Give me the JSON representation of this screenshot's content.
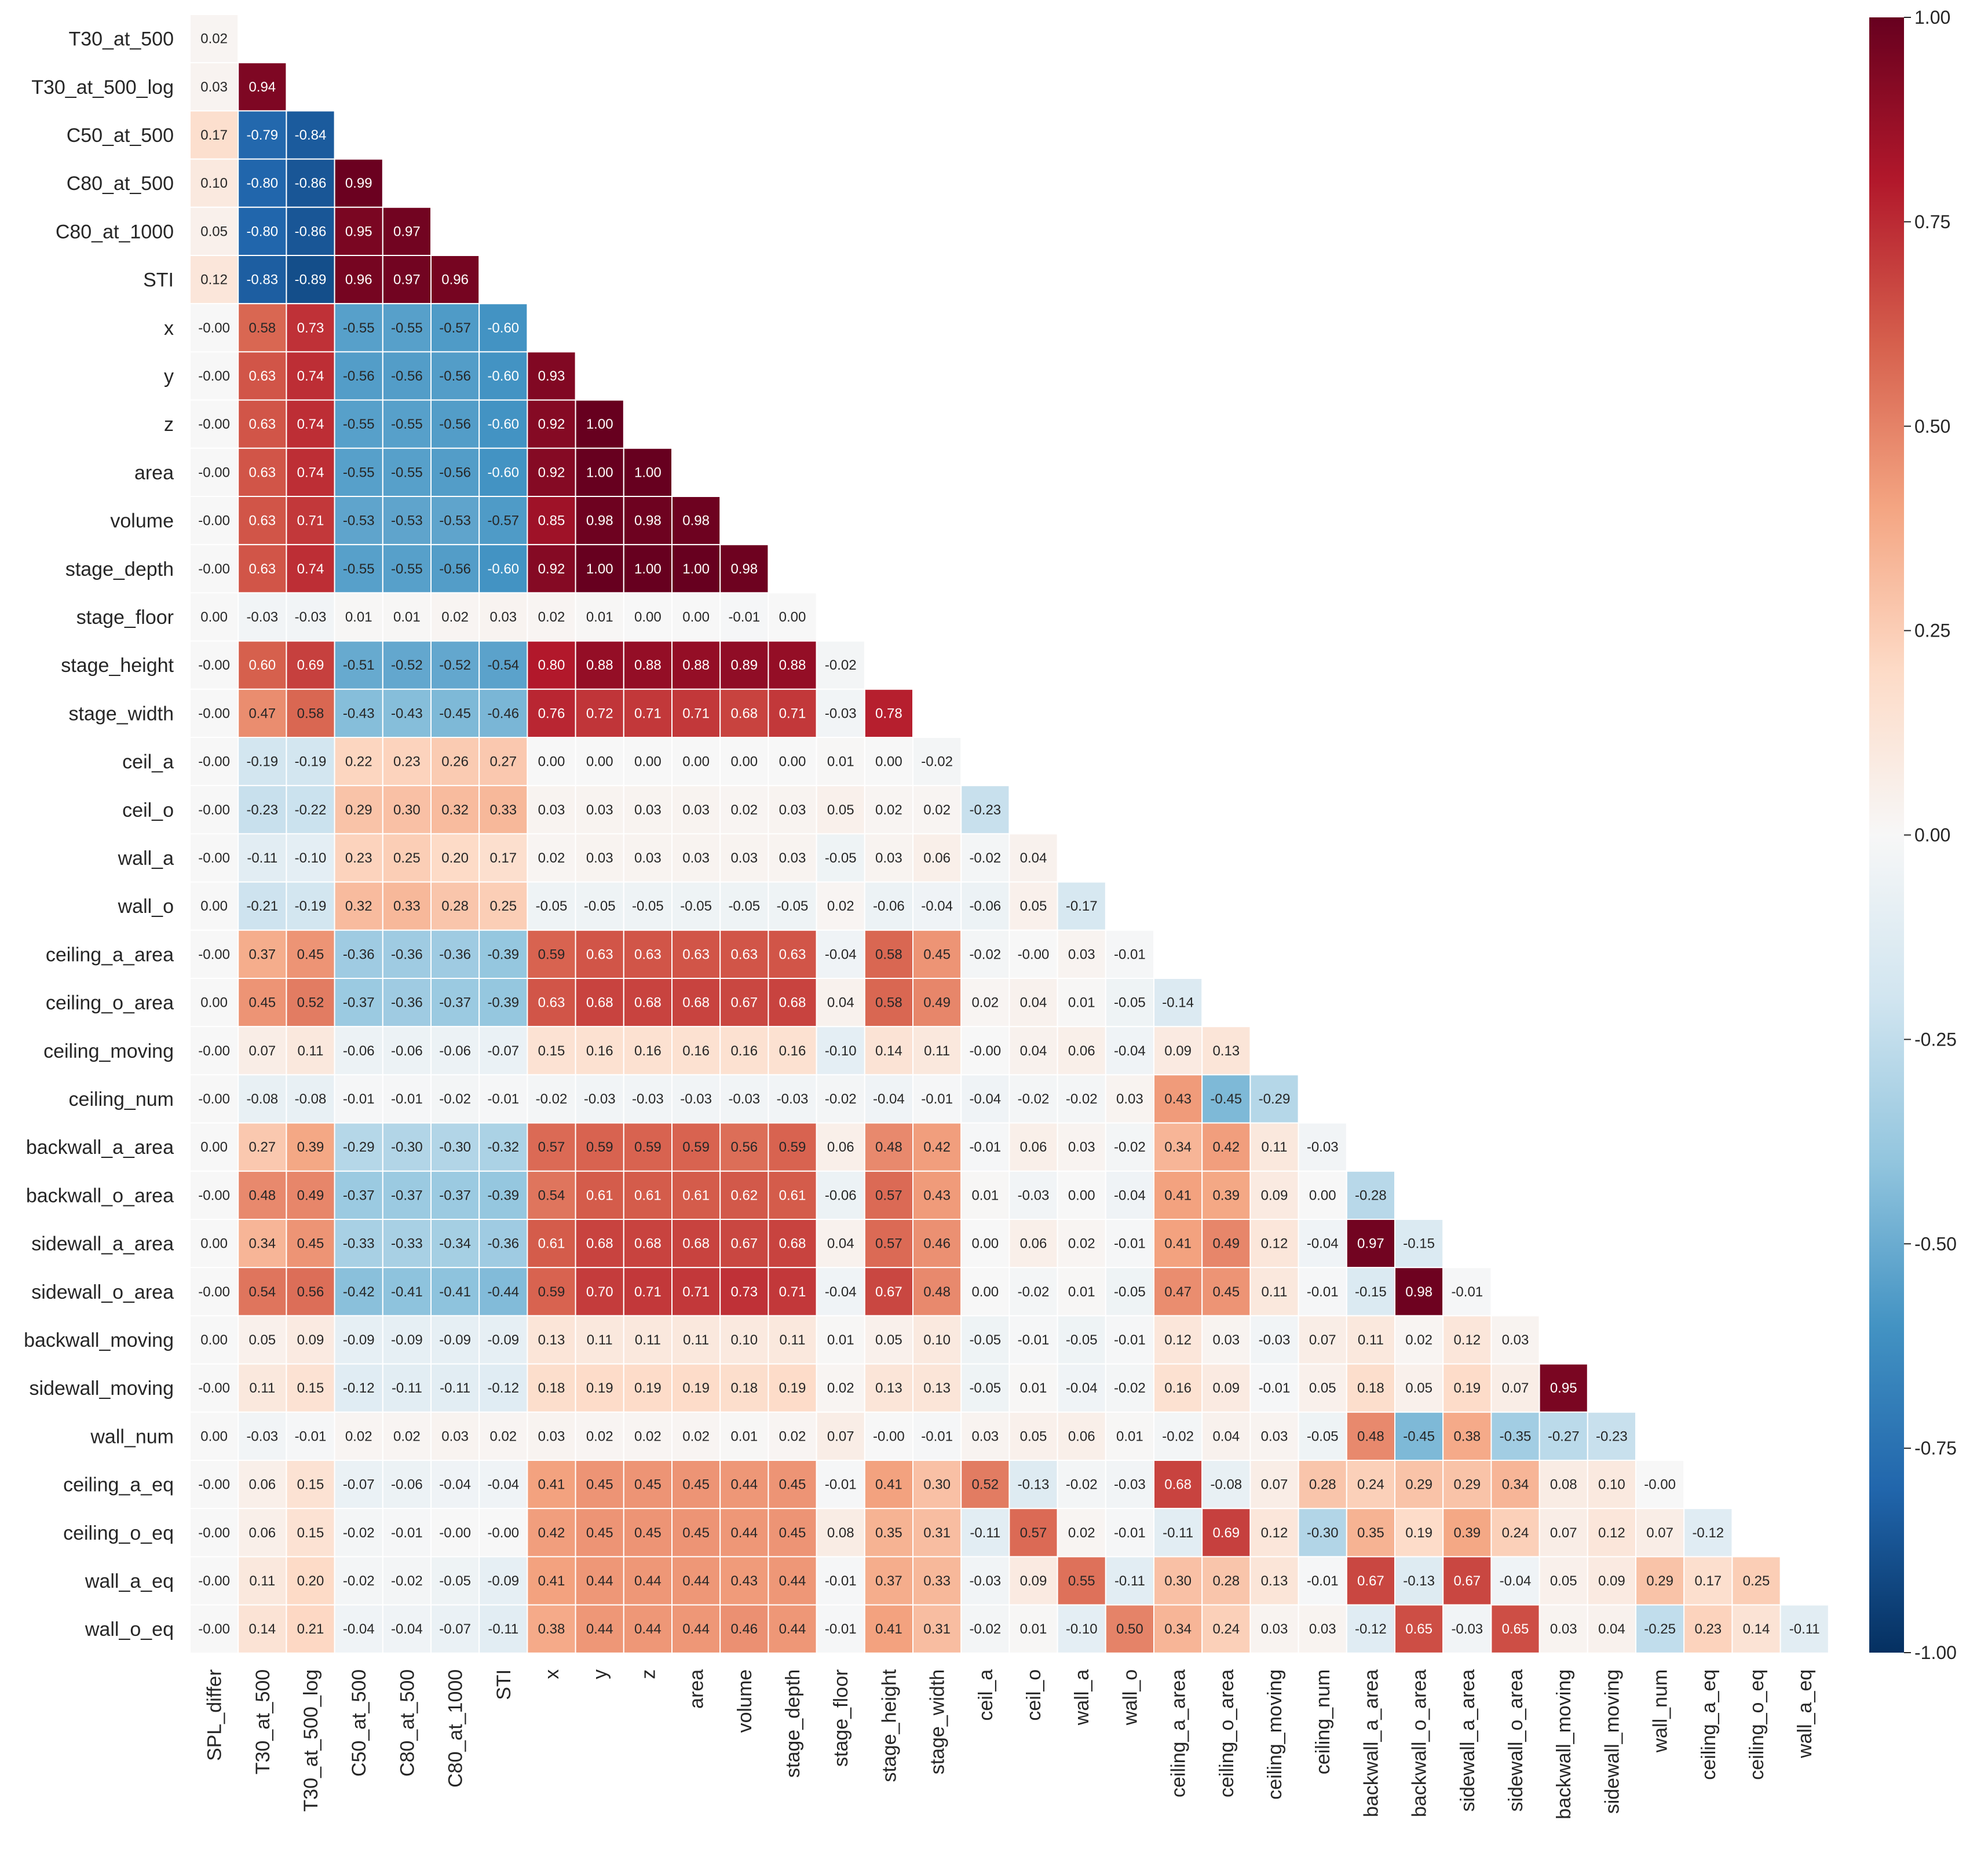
{
  "chart_data": {
    "type": "heatmap",
    "title": "",
    "variables": [
      "SPL_differ",
      "T30_at_500",
      "T30_at_500_log",
      "C50_at_500",
      "C80_at_500",
      "C80_at_1000",
      "STI",
      "x",
      "y",
      "z",
      "area",
      "volume",
      "stage_depth",
      "stage_floor",
      "stage_height",
      "stage_width",
      "ceil_a",
      "ceil_o",
      "wall_a",
      "wall_o",
      "ceiling_a_area",
      "ceiling_o_area",
      "ceiling_moving",
      "ceiling_num",
      "backwall_a_area",
      "backwall_o_area",
      "sidewall_a_area",
      "sidewall_o_area",
      "backwall_moving",
      "sidewall_moving",
      "wall_num",
      "ceiling_a_eq",
      "ceiling_o_eq",
      "wall_a_eq",
      "wall_o_eq"
    ],
    "row_labels": [
      "T30_at_500",
      "T30_at_500_log",
      "C50_at_500",
      "C80_at_500",
      "C80_at_1000",
      "STI",
      "x",
      "y",
      "z",
      "area",
      "volume",
      "stage_depth",
      "stage_floor",
      "stage_height",
      "stage_width",
      "ceil_a",
      "ceil_o",
      "wall_a",
      "wall_o",
      "ceiling_a_area",
      "ceiling_o_area",
      "ceiling_moving",
      "ceiling_num",
      "backwall_a_area",
      "backwall_o_area",
      "sidewall_a_area",
      "sidewall_o_area",
      "backwall_moving",
      "sidewall_moving",
      "wall_num",
      "ceiling_a_eq",
      "ceiling_o_eq",
      "wall_a_eq",
      "wall_o_eq"
    ],
    "col_labels": [
      "SPL_differ",
      "T30_at_500",
      "T30_at_500_log",
      "C50_at_500",
      "C80_at_500",
      "C80_at_1000",
      "STI",
      "x",
      "y",
      "z",
      "area",
      "volume",
      "stage_depth",
      "stage_floor",
      "stage_height",
      "stage_width",
      "ceil_a",
      "ceil_o",
      "wall_a",
      "wall_o",
      "ceiling_a_area",
      "ceiling_o_area",
      "ceiling_moving",
      "ceiling_num",
      "backwall_a_area",
      "backwall_o_area",
      "sidewall_a_area",
      "sidewall_o_area",
      "backwall_moving",
      "sidewall_moving",
      "wall_num",
      "ceiling_a_eq",
      "ceiling_o_eq",
      "wall_a_eq"
    ],
    "lower_triangle": [
      [
        "0.02"
      ],
      [
        "0.03",
        "0.94"
      ],
      [
        "0.17",
        "-0.79",
        "-0.84"
      ],
      [
        "0.10",
        "-0.80",
        "-0.86",
        "0.99"
      ],
      [
        "0.05",
        "-0.80",
        "-0.86",
        "0.95",
        "0.97"
      ],
      [
        "0.12",
        "-0.83",
        "-0.89",
        "0.96",
        "0.97",
        "0.96"
      ],
      [
        "-0.00",
        "0.58",
        "0.73",
        "-0.55",
        "-0.55",
        "-0.57",
        "-0.60"
      ],
      [
        "-0.00",
        "0.63",
        "0.74",
        "-0.56",
        "-0.56",
        "-0.56",
        "-0.60",
        "0.93"
      ],
      [
        "-0.00",
        "0.63",
        "0.74",
        "-0.55",
        "-0.55",
        "-0.56",
        "-0.60",
        "0.92",
        "1.00"
      ],
      [
        "-0.00",
        "0.63",
        "0.74",
        "-0.55",
        "-0.55",
        "-0.56",
        "-0.60",
        "0.92",
        "1.00",
        "1.00"
      ],
      [
        "-0.00",
        "0.63",
        "0.71",
        "-0.53",
        "-0.53",
        "-0.53",
        "-0.57",
        "0.85",
        "0.98",
        "0.98",
        "0.98"
      ],
      [
        "-0.00",
        "0.63",
        "0.74",
        "-0.55",
        "-0.55",
        "-0.56",
        "-0.60",
        "0.92",
        "1.00",
        "1.00",
        "1.00",
        "0.98"
      ],
      [
        "0.00",
        "-0.03",
        "-0.03",
        "0.01",
        "0.01",
        "0.02",
        "0.03",
        "0.02",
        "0.01",
        "0.00",
        "0.00",
        "-0.01",
        "0.00"
      ],
      [
        "-0.00",
        "0.60",
        "0.69",
        "-0.51",
        "-0.52",
        "-0.52",
        "-0.54",
        "0.80",
        "0.88",
        "0.88",
        "0.88",
        "0.89",
        "0.88",
        "-0.02"
      ],
      [
        "-0.00",
        "0.47",
        "0.58",
        "-0.43",
        "-0.43",
        "-0.45",
        "-0.46",
        "0.76",
        "0.72",
        "0.71",
        "0.71",
        "0.68",
        "0.71",
        "-0.03",
        "0.78"
      ],
      [
        "-0.00",
        "-0.19",
        "-0.19",
        "0.22",
        "0.23",
        "0.26",
        "0.27",
        "0.00",
        "0.00",
        "0.00",
        "0.00",
        "0.00",
        "0.00",
        "0.01",
        "0.00",
        "-0.02"
      ],
      [
        "-0.00",
        "-0.23",
        "-0.22",
        "0.29",
        "0.30",
        "0.32",
        "0.33",
        "0.03",
        "0.03",
        "0.03",
        "0.03",
        "0.02",
        "0.03",
        "0.05",
        "0.02",
        "0.02",
        "-0.23"
      ],
      [
        "-0.00",
        "-0.11",
        "-0.10",
        "0.23",
        "0.25",
        "0.20",
        "0.17",
        "0.02",
        "0.03",
        "0.03",
        "0.03",
        "0.03",
        "0.03",
        "-0.05",
        "0.03",
        "0.06",
        "-0.02",
        "0.04"
      ],
      [
        "0.00",
        "-0.21",
        "-0.19",
        "0.32",
        "0.33",
        "0.28",
        "0.25",
        "-0.05",
        "-0.05",
        "-0.05",
        "-0.05",
        "-0.05",
        "-0.05",
        "0.02",
        "-0.06",
        "-0.04",
        "-0.06",
        "0.05",
        "-0.17"
      ],
      [
        "-0.00",
        "0.37",
        "0.45",
        "-0.36",
        "-0.36",
        "-0.36",
        "-0.39",
        "0.59",
        "0.63",
        "0.63",
        "0.63",
        "0.63",
        "0.63",
        "-0.04",
        "0.58",
        "0.45",
        "-0.02",
        "-0.00",
        "0.03",
        "-0.01"
      ],
      [
        "0.00",
        "0.45",
        "0.52",
        "-0.37",
        "-0.36",
        "-0.37",
        "-0.39",
        "0.63",
        "0.68",
        "0.68",
        "0.68",
        "0.67",
        "0.68",
        "0.04",
        "0.58",
        "0.49",
        "0.02",
        "0.04",
        "0.01",
        "-0.05",
        "-0.14"
      ],
      [
        "-0.00",
        "0.07",
        "0.11",
        "-0.06",
        "-0.06",
        "-0.06",
        "-0.07",
        "0.15",
        "0.16",
        "0.16",
        "0.16",
        "0.16",
        "0.16",
        "-0.10",
        "0.14",
        "0.11",
        "-0.00",
        "0.04",
        "0.06",
        "-0.04",
        "0.09",
        "0.13"
      ],
      [
        "-0.00",
        "-0.08",
        "-0.08",
        "-0.01",
        "-0.01",
        "-0.02",
        "-0.01",
        "-0.02",
        "-0.03",
        "-0.03",
        "-0.03",
        "-0.03",
        "-0.03",
        "-0.02",
        "-0.04",
        "-0.01",
        "-0.04",
        "-0.02",
        "-0.02",
        "0.03",
        "0.43",
        "-0.45",
        "-0.29"
      ],
      [
        "0.00",
        "0.27",
        "0.39",
        "-0.29",
        "-0.30",
        "-0.30",
        "-0.32",
        "0.57",
        "0.59",
        "0.59",
        "0.59",
        "0.56",
        "0.59",
        "0.06",
        "0.48",
        "0.42",
        "-0.01",
        "0.06",
        "0.03",
        "-0.02",
        "0.34",
        "0.42",
        "0.11",
        "-0.03"
      ],
      [
        "-0.00",
        "0.48",
        "0.49",
        "-0.37",
        "-0.37",
        "-0.37",
        "-0.39",
        "0.54",
        "0.61",
        "0.61",
        "0.61",
        "0.62",
        "0.61",
        "-0.06",
        "0.57",
        "0.43",
        "0.01",
        "-0.03",
        "0.00",
        "-0.04",
        "0.41",
        "0.39",
        "0.09",
        "0.00",
        "-0.28"
      ],
      [
        "0.00",
        "0.34",
        "0.45",
        "-0.33",
        "-0.33",
        "-0.34",
        "-0.36",
        "0.61",
        "0.68",
        "0.68",
        "0.68",
        "0.67",
        "0.68",
        "0.04",
        "0.57",
        "0.46",
        "0.00",
        "0.06",
        "0.02",
        "-0.01",
        "0.41",
        "0.49",
        "0.12",
        "-0.04",
        "0.97",
        "-0.15"
      ],
      [
        "-0.00",
        "0.54",
        "0.56",
        "-0.42",
        "-0.41",
        "-0.41",
        "-0.44",
        "0.59",
        "0.70",
        "0.71",
        "0.71",
        "0.73",
        "0.71",
        "-0.04",
        "0.67",
        "0.48",
        "0.00",
        "-0.02",
        "0.01",
        "-0.05",
        "0.47",
        "0.45",
        "0.11",
        "-0.01",
        "-0.15",
        "0.98",
        "-0.01"
      ],
      [
        "0.00",
        "0.05",
        "0.09",
        "-0.09",
        "-0.09",
        "-0.09",
        "-0.09",
        "0.13",
        "0.11",
        "0.11",
        "0.11",
        "0.10",
        "0.11",
        "0.01",
        "0.05",
        "0.10",
        "-0.05",
        "-0.01",
        "-0.05",
        "-0.01",
        "0.12",
        "0.03",
        "-0.03",
        "0.07",
        "0.11",
        "0.02",
        "0.12",
        "0.03"
      ],
      [
        "-0.00",
        "0.11",
        "0.15",
        "-0.12",
        "-0.11",
        "-0.11",
        "-0.12",
        "0.18",
        "0.19",
        "0.19",
        "0.19",
        "0.18",
        "0.19",
        "0.02",
        "0.13",
        "0.13",
        "-0.05",
        "0.01",
        "-0.04",
        "-0.02",
        "0.16",
        "0.09",
        "-0.01",
        "0.05",
        "0.18",
        "0.05",
        "0.19",
        "0.07",
        "0.95"
      ],
      [
        "0.00",
        "-0.03",
        "-0.01",
        "0.02",
        "0.02",
        "0.03",
        "0.02",
        "0.03",
        "0.02",
        "0.02",
        "0.02",
        "0.01",
        "0.02",
        "0.07",
        "-0.00",
        "-0.01",
        "0.03",
        "0.05",
        "0.06",
        "0.01",
        "-0.02",
        "0.04",
        "0.03",
        "-0.05",
        "0.48",
        "-0.45",
        "0.38",
        "-0.35",
        "-0.27",
        "-0.23"
      ],
      [
        "-0.00",
        "0.06",
        "0.15",
        "-0.07",
        "-0.06",
        "-0.04",
        "-0.04",
        "0.41",
        "0.45",
        "0.45",
        "0.45",
        "0.44",
        "0.45",
        "-0.01",
        "0.41",
        "0.30",
        "0.52",
        "-0.13",
        "-0.02",
        "-0.03",
        "0.68",
        "-0.08",
        "0.07",
        "0.28",
        "0.24",
        "0.29",
        "0.29",
        "0.34",
        "0.08",
        "0.10",
        "-0.00"
      ],
      [
        "-0.00",
        "0.06",
        "0.15",
        "-0.02",
        "-0.01",
        "-0.00",
        "-0.00",
        "0.42",
        "0.45",
        "0.45",
        "0.45",
        "0.44",
        "0.45",
        "0.08",
        "0.35",
        "0.31",
        "-0.11",
        "0.57",
        "0.02",
        "-0.01",
        "-0.11",
        "0.69",
        "0.12",
        "-0.30",
        "0.35",
        "0.19",
        "0.39",
        "0.24",
        "0.07",
        "0.12",
        "0.07",
        "-0.12"
      ],
      [
        "-0.00",
        "0.11",
        "0.20",
        "-0.02",
        "-0.02",
        "-0.05",
        "-0.09",
        "0.41",
        "0.44",
        "0.44",
        "0.44",
        "0.43",
        "0.44",
        "-0.01",
        "0.37",
        "0.33",
        "-0.03",
        "0.09",
        "0.55",
        "-0.11",
        "0.30",
        "0.28",
        "0.13",
        "-0.01",
        "0.67",
        "-0.13",
        "0.67",
        "-0.04",
        "0.05",
        "0.09",
        "0.29",
        "0.17",
        "0.25"
      ],
      [
        "-0.00",
        "0.14",
        "0.21",
        "-0.04",
        "-0.04",
        "-0.07",
        "-0.11",
        "0.38",
        "0.44",
        "0.44",
        "0.44",
        "0.46",
        "0.44",
        "-0.01",
        "0.41",
        "0.31",
        "-0.02",
        "0.01",
        "-0.10",
        "0.50",
        "0.34",
        "0.24",
        "0.03",
        "0.03",
        "-0.12",
        "0.65",
        "-0.03",
        "0.65",
        "0.03",
        "0.04",
        "-0.25",
        "0.23",
        "0.14",
        "-0.11"
      ]
    ],
    "colorbar": {
      "colormap": "RdBu_r",
      "vmin": -1.0,
      "vmax": 1.0,
      "ticks": [
        "1.00",
        "0.75",
        "0.50",
        "0.25",
        "0.00",
        "-0.25",
        "-0.50",
        "-0.75",
        "-1.00"
      ],
      "placement": "right"
    },
    "colors": {
      "neg_dark": "#053061",
      "neg_mid": "#2166ac",
      "neg_light": "#4393c3",
      "neg_pale": "#92c5de",
      "neg_faint": "#d1e5f0",
      "zero": "#f7f7f7",
      "pos_faint": "#fddbc7",
      "pos_pale": "#f4a582",
      "pos_light": "#d6604d",
      "pos_mid": "#b2182b",
      "pos_dark": "#67001f",
      "grid_line": "#ffffff",
      "text_dark": "#262626",
      "text_light": "#ffffff"
    }
  }
}
